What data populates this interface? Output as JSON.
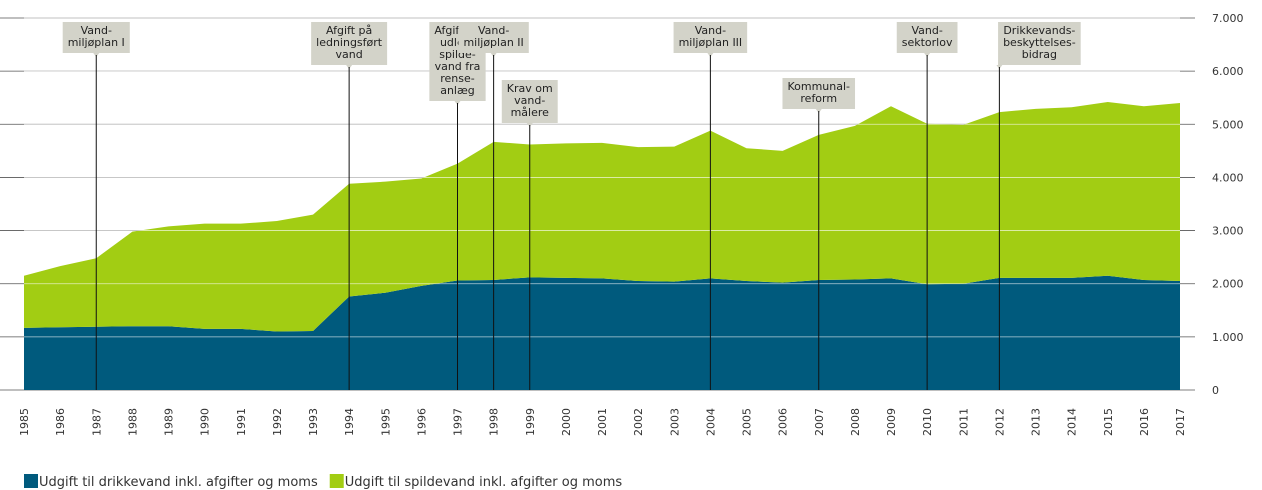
{
  "chart_data": {
    "type": "stacked_area",
    "x": [
      1985,
      1986,
      1987,
      1988,
      1989,
      1990,
      1991,
      1992,
      1993,
      1994,
      1995,
      1996,
      1997,
      1998,
      1999,
      2000,
      2001,
      2002,
      2003,
      2004,
      2005,
      2006,
      2007,
      2008,
      2009,
      2010,
      2011,
      2012,
      2013,
      2014,
      2015,
      2016,
      2017
    ],
    "series": [
      {
        "name": "Udgift til drikkevand inkl. afgifter og moms",
        "color": "#005a7d",
        "values": [
          1170,
          1180,
          1190,
          1200,
          1200,
          1150,
          1150,
          1100,
          1110,
          1760,
          1830,
          1960,
          2060,
          2070,
          2120,
          2110,
          2100,
          2050,
          2040,
          2100,
          2050,
          2020,
          2070,
          2080,
          2100,
          1990,
          2000,
          2110,
          2110,
          2110,
          2150,
          2070,
          2050
        ]
      },
      {
        "name": "Udgift til spildevand inkl. afgifter og moms",
        "color": "#a2cd13",
        "values": [
          980,
          1150,
          1290,
          1780,
          1880,
          1980,
          1980,
          2080,
          2190,
          2120,
          2090,
          2020,
          2200,
          2600,
          2500,
          2530,
          2550,
          2520,
          2540,
          2780,
          2500,
          2480,
          2730,
          2890,
          3240,
          3020,
          2990,
          3120,
          3180,
          3210,
          3270,
          3270,
          3350
        ]
      }
    ],
    "xlim": [
      1985,
      2017
    ],
    "ylim": [
      0,
      7000
    ],
    "yticks": [
      0,
      {
        "value": 1000,
        "label": "1.000"
      },
      {
        "value": 2000,
        "label": "2.000"
      },
      {
        "value": 3000,
        "label": "3.000"
      },
      {
        "value": 4000,
        "label": "4.000"
      },
      {
        "value": 5000,
        "label": "5.000"
      },
      {
        "value": 6000,
        "label": "6.000"
      },
      {
        "value": 7000,
        "label": "7.000"
      }
    ],
    "grid": true,
    "annotations": [
      {
        "x": 1987,
        "lines": [
          "Vand-",
          "miljøplan I"
        ]
      },
      {
        "x": 1994,
        "lines": [
          "Afgift på",
          "ledningsført",
          "vand"
        ]
      },
      {
        "x": 1997,
        "lines": [
          "Afgift på",
          "udledt",
          "spilde-",
          "vand fra",
          "rense-",
          "anlæg"
        ]
      },
      {
        "x": 1998,
        "lines": [
          "Vand-",
          "miljøplan II"
        ]
      },
      {
        "x": 1999,
        "lines": [
          "Krav om",
          "vand-",
          "målere"
        ]
      },
      {
        "x": 2004,
        "lines": [
          "Vand-",
          "miljøplan III"
        ]
      },
      {
        "x": 2007,
        "lines": [
          "Kommunal-",
          "reform"
        ]
      },
      {
        "x": 2010,
        "lines": [
          "Vand-",
          "sektorlov"
        ]
      },
      {
        "x": 2012,
        "lines": [
          "Drikkevands-",
          "beskyttelses-",
          "bidrag"
        ]
      }
    ]
  }
}
